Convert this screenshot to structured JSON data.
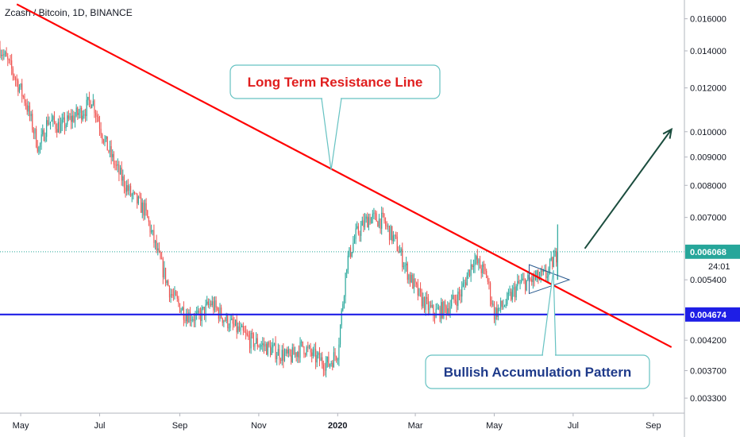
{
  "title": "Zcash / Bitcoin, 1D, BINANCE",
  "colors": {
    "up": "#26a69a",
    "down": "#ef5350",
    "resistance": "#ff0000",
    "support": "#1e1ee6",
    "price_line": "#26a69a",
    "arrow": "#1b4d3e",
    "callout_border": "#66c2c2",
    "callout1_text": "#e01e1e",
    "callout2_text": "#1e3a8a",
    "triangle": "#2a5b8f"
  },
  "chart_data": {
    "type": "candlestick",
    "scale": "log",
    "ylim": [
      0.0031,
      0.0173
    ],
    "y_ticks": [
      "0.016000",
      "0.014000",
      "0.012000",
      "0.010000",
      "0.009000",
      "0.008000",
      "0.007000",
      "0.005400",
      "0.004200",
      "0.003700",
      "0.003300"
    ],
    "x_ticks": [
      {
        "label": "May",
        "date": "2019-05-01",
        "bold": false
      },
      {
        "label": "Jul",
        "date": "2019-07-01",
        "bold": false
      },
      {
        "label": "Sep",
        "date": "2019-09-01",
        "bold": false
      },
      {
        "label": "Nov",
        "date": "2019-11-01",
        "bold": false
      },
      {
        "label": "2020",
        "date": "2020-01-01",
        "bold": true
      },
      {
        "label": "Mar",
        "date": "2020-03-01",
        "bold": false
      },
      {
        "label": "May",
        "date": "2020-05-01",
        "bold": false
      },
      {
        "label": "Jul",
        "date": "2020-07-01",
        "bold": false
      },
      {
        "label": "Sep",
        "date": "2020-09-01",
        "bold": false
      }
    ],
    "x_range": [
      "2019-04-15",
      "2020-09-25"
    ],
    "series_close_path": [
      [
        "2019-04-15",
        0.0142
      ],
      [
        "2019-04-25",
        0.0128
      ],
      [
        "2019-05-05",
        0.0113
      ],
      [
        "2019-05-15",
        0.0093
      ],
      [
        "2019-05-22",
        0.0105
      ],
      [
        "2019-06-01",
        0.0102
      ],
      [
        "2019-06-10",
        0.0106
      ],
      [
        "2019-06-20",
        0.011
      ],
      [
        "2019-06-25",
        0.0115
      ],
      [
        "2019-07-05",
        0.0096
      ],
      [
        "2019-07-15",
        0.0085
      ],
      [
        "2019-07-25",
        0.0077
      ],
      [
        "2019-08-05",
        0.0072
      ],
      [
        "2019-08-15",
        0.006
      ],
      [
        "2019-08-25",
        0.0051
      ],
      [
        "2019-09-05",
        0.0047
      ],
      [
        "2019-09-15",
        0.0046
      ],
      [
        "2019-09-25",
        0.0049
      ],
      [
        "2019-10-05",
        0.0046
      ],
      [
        "2019-10-15",
        0.0044
      ],
      [
        "2019-10-25",
        0.0042
      ],
      [
        "2019-11-05",
        0.0041
      ],
      [
        "2019-11-15",
        0.004
      ],
      [
        "2019-11-25",
        0.0039
      ],
      [
        "2019-12-05",
        0.0041
      ],
      [
        "2019-12-15",
        0.0039
      ],
      [
        "2019-12-25",
        0.0038
      ],
      [
        "2020-01-01",
        0.004
      ],
      [
        "2020-01-08",
        0.0058
      ],
      [
        "2020-01-15",
        0.0065
      ],
      [
        "2020-01-25",
        0.007
      ],
      [
        "2020-02-05",
        0.0069
      ],
      [
        "2020-02-15",
        0.0063
      ],
      [
        "2020-02-25",
        0.0055
      ],
      [
        "2020-03-05",
        0.005
      ],
      [
        "2020-03-15",
        0.0047
      ],
      [
        "2020-03-25",
        0.0048
      ],
      [
        "2020-04-05",
        0.0051
      ],
      [
        "2020-04-15",
        0.0059
      ],
      [
        "2020-04-25",
        0.0055
      ],
      [
        "2020-05-01",
        0.0047
      ],
      [
        "2020-05-10",
        0.0049
      ],
      [
        "2020-05-20",
        0.0053
      ],
      [
        "2020-05-30",
        0.0054
      ],
      [
        "2020-06-10",
        0.0055
      ],
      [
        "2020-06-18",
        0.006
      ]
    ],
    "last_price": {
      "value": 0.006068,
      "label": "0.006068",
      "countdown": "24:01"
    },
    "support": {
      "value": 0.004674,
      "label": "0.004674"
    },
    "resistance_line": {
      "start": [
        "2019-04-28",
        0.017
      ],
      "end": [
        "2020-09-15",
        0.00408
      ]
    },
    "projection_arrow": {
      "start": [
        "2020-07-10",
        0.00615
      ],
      "end": [
        "2020-09-15",
        0.0101
      ]
    },
    "triangle_pattern": {
      "start_date": "2020-05-28",
      "end_date": "2020-06-28",
      "upper": [
        0.00575,
        0.0054
      ],
      "lower": [
        0.0051,
        0.0054
      ]
    },
    "annotations": [
      {
        "id": "resistance",
        "text": "Long Term Resistance Line"
      },
      {
        "id": "accumulation",
        "text": "Bullish Accumulation Pattern"
      }
    ]
  }
}
